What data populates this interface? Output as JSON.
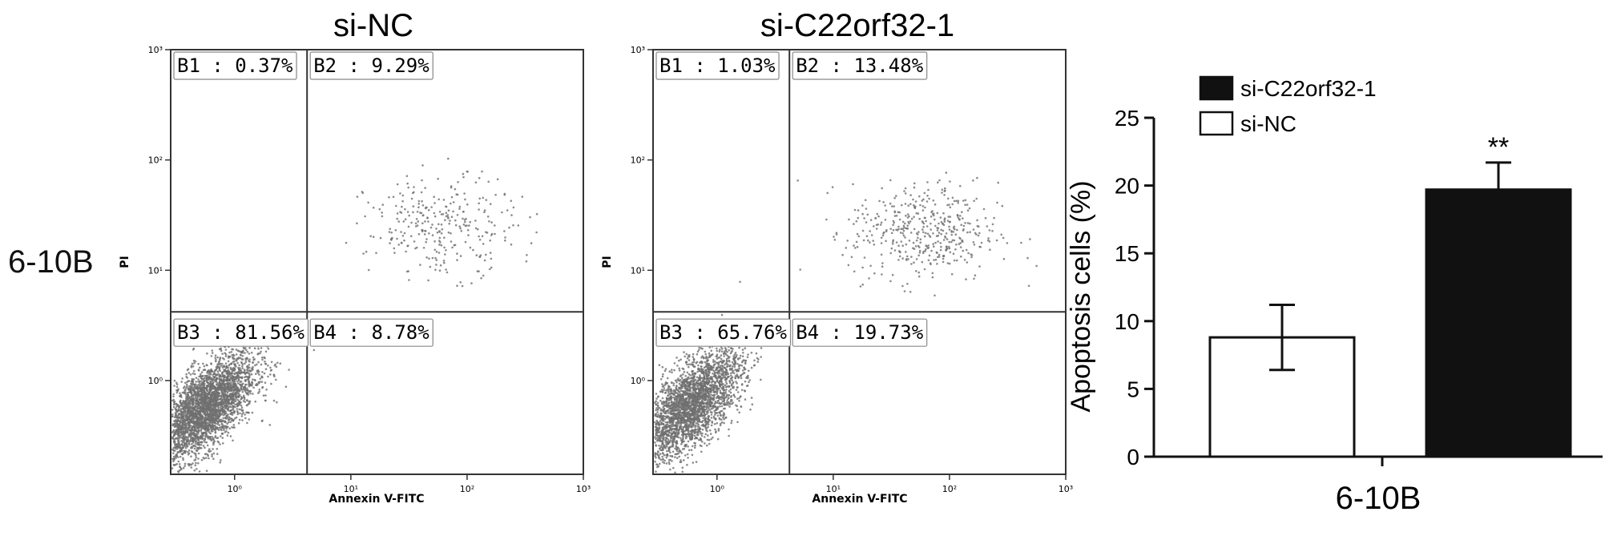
{
  "row_label": "6-10B",
  "chart_data": [
    {
      "type": "scatter",
      "title": "si-NC",
      "xlabel": "Annexin V-FITC",
      "ylabel": "PI",
      "scale": "log",
      "x_tick_labels": [
        "10⁰",
        "10¹",
        "10²",
        "10³"
      ],
      "y_tick_labels": [
        "10⁰",
        "10¹",
        "10²",
        "10³"
      ],
      "gate": {
        "x": 4.2,
        "y": 4.2
      },
      "quadrants": [
        {
          "label": "B1 : 0.37%",
          "name": "B1",
          "percent": 0.37
        },
        {
          "label": "B2 : 9.29%",
          "name": "B2",
          "percent": 9.29
        },
        {
          "label": "B3 : 81.56%",
          "name": "B3",
          "percent": 81.56
        },
        {
          "label": "B4 : 8.78%",
          "name": "B4",
          "percent": 8.78
        }
      ],
      "populations": [
        {
          "center_x": 0.55,
          "center_y": 0.55,
          "count": 3400
        },
        {
          "center_x": 60,
          "center_y": 25,
          "count": 300
        }
      ]
    },
    {
      "type": "scatter",
      "title": "si-C22orf32-1",
      "xlabel": "Annexin V-FITC",
      "ylabel": "PI",
      "scale": "log",
      "x_tick_labels": [
        "10⁰",
        "10¹",
        "10²",
        "10³"
      ],
      "y_tick_labels": [
        "10⁰",
        "10¹",
        "10²",
        "10³"
      ],
      "gate": {
        "x": 4.2,
        "y": 4.2
      },
      "quadrants": [
        {
          "label": "B1 : 1.03%",
          "name": "B1",
          "percent": 1.03
        },
        {
          "label": "B2 : 13.48%",
          "name": "B2",
          "percent": 13.48
        },
        {
          "label": "B3 : 65.76%",
          "name": "B3",
          "percent": 65.76
        },
        {
          "label": "B4 : 19.73%",
          "name": "B4",
          "percent": 19.73
        }
      ],
      "populations": [
        {
          "center_x": 0.6,
          "center_y": 0.6,
          "count": 2900
        },
        {
          "center_x": 60,
          "center_y": 22,
          "count": 450
        }
      ]
    },
    {
      "type": "bar",
      "categories": [
        "6-10B"
      ],
      "ylabel": "Apoptosis cells (%)",
      "ylim": [
        0,
        25
      ],
      "yticks": [
        "0",
        "5",
        "10",
        "15",
        "20",
        "25"
      ],
      "legend_position": "top-left",
      "series": [
        {
          "name": "si-NC",
          "values": [
            8.8
          ],
          "error": [
            2.4
          ],
          "color": "#ffffff"
        },
        {
          "name": "si-C22orf32-1",
          "values": [
            19.7
          ],
          "error": [
            2.0
          ],
          "color": "#111111",
          "annotation": "**"
        }
      ]
    }
  ]
}
